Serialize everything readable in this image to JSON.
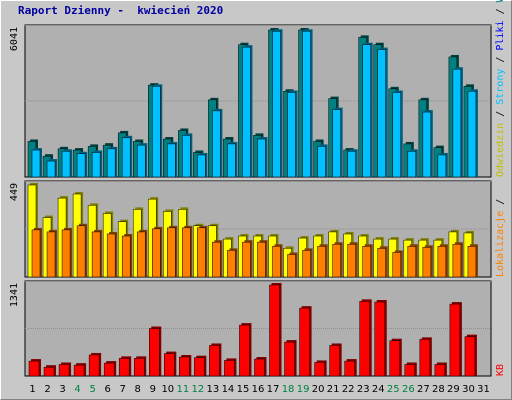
{
  "title": "Raport Dzienny -  kwiecień 2020",
  "colors": {
    "background": "#c8c8c8",
    "plot_bg": "#b0b0b0",
    "grid": "#909090",
    "visits": "#008080",
    "pages": "#00c0ff",
    "hits": "#ffff00",
    "files": "#ff8000",
    "kb": "#ff0000",
    "title": "#0000a0",
    "weekend": "#008040",
    "weekday": "#000000"
  },
  "right_labels": {
    "visits": "Wizyty",
    "slash": " / ",
    "files": "Pliki",
    "pages": "Strony",
    "hits": "Odwiedzin",
    "locations": "Lokalizacje",
    "kb": "KB"
  },
  "chart_data": [
    {
      "type": "bar",
      "panel": "top",
      "ymax_label": "6041",
      "ylim": [
        0,
        6041
      ],
      "categories": [
        "1",
        "2",
        "3",
        "4",
        "5",
        "6",
        "7",
        "8",
        "9",
        "10",
        "11",
        "12",
        "13",
        "14",
        "15",
        "16",
        "17",
        "18",
        "19",
        "20",
        "21",
        "22",
        "23",
        "24",
        "25",
        "26",
        "27",
        "28",
        "29",
        "30"
      ],
      "series": [
        {
          "name": "Wizyty",
          "values": [
            1450,
            850,
            1150,
            1100,
            1250,
            1300,
            1800,
            1450,
            3750,
            1550,
            1900,
            1000,
            3150,
            1550,
            5400,
            1700,
            6000,
            3500,
            6000,
            1450,
            3200,
            1100,
            5700,
            5400,
            3600,
            1350,
            3150,
            1200,
            4900,
            3700
          ]
        },
        {
          "name": "Pliki",
          "values": [
            1100,
            650,
            1050,
            950,
            1000,
            1150,
            1600,
            1300,
            3700,
            1350,
            1700,
            900,
            2700,
            1350,
            5300,
            1550,
            5950,
            3450,
            5950,
            1250,
            2750,
            1050,
            5400,
            5200,
            3450,
            1050,
            2650,
            900,
            4400,
            3500
          ]
        }
      ]
    },
    {
      "type": "bar",
      "panel": "middle",
      "ymax_label": "449",
      "ylim": [
        0,
        449
      ],
      "categories": [
        "1",
        "2",
        "3",
        "4",
        "5",
        "6",
        "7",
        "8",
        "9",
        "10",
        "11",
        "12",
        "13",
        "14",
        "15",
        "16",
        "17",
        "18",
        "19",
        "20",
        "21",
        "22",
        "23",
        "24",
        "25",
        "26",
        "27",
        "28",
        "29",
        "30"
      ],
      "series": [
        {
          "name": "Strony",
          "values": [
            449,
            290,
            385,
            405,
            350,
            310,
            270,
            330,
            380,
            320,
            330,
            250,
            250,
            185,
            200,
            200,
            200,
            140,
            190,
            200,
            220,
            210,
            200,
            185,
            185,
            180,
            180,
            180,
            220,
            215
          ]
        },
        {
          "name": "Lokalizacje",
          "values": [
            230,
            220,
            230,
            250,
            220,
            210,
            200,
            220,
            235,
            240,
            240,
            240,
            170,
            130,
            170,
            170,
            150,
            110,
            130,
            150,
            160,
            160,
            150,
            140,
            120,
            150,
            145,
            150,
            160,
            150
          ]
        }
      ]
    },
    {
      "type": "bar",
      "panel": "bottom",
      "ymax_label": "1341",
      "ylim": [
        0,
        1341
      ],
      "categories": [
        "1",
        "2",
        "3",
        "4",
        "5",
        "6",
        "7",
        "8",
        "9",
        "10",
        "11",
        "12",
        "13",
        "14",
        "15",
        "16",
        "17",
        "18",
        "19",
        "20",
        "21",
        "22",
        "23",
        "24",
        "25",
        "26",
        "27",
        "28",
        "29",
        "30"
      ],
      "series": [
        {
          "name": "KB",
          "values": [
            220,
            130,
            170,
            160,
            310,
            190,
            260,
            260,
            700,
            330,
            280,
            270,
            450,
            230,
            750,
            250,
            1341,
            500,
            1000,
            200,
            450,
            220,
            1100,
            1090,
            520,
            170,
            540,
            170,
            1060,
            580
          ]
        }
      ]
    }
  ],
  "x_labels": [
    "1",
    "2",
    "3",
    "4",
    "5",
    "6",
    "7",
    "8",
    "9",
    "10",
    "11",
    "12",
    "13",
    "14",
    "15",
    "16",
    "17",
    "18",
    "19",
    "20",
    "21",
    "22",
    "23",
    "24",
    "25",
    "26",
    "27",
    "28",
    "29",
    "30",
    "31"
  ],
  "weekend_days": [
    "4",
    "5",
    "11",
    "12",
    "18",
    "19",
    "25",
    "26"
  ]
}
